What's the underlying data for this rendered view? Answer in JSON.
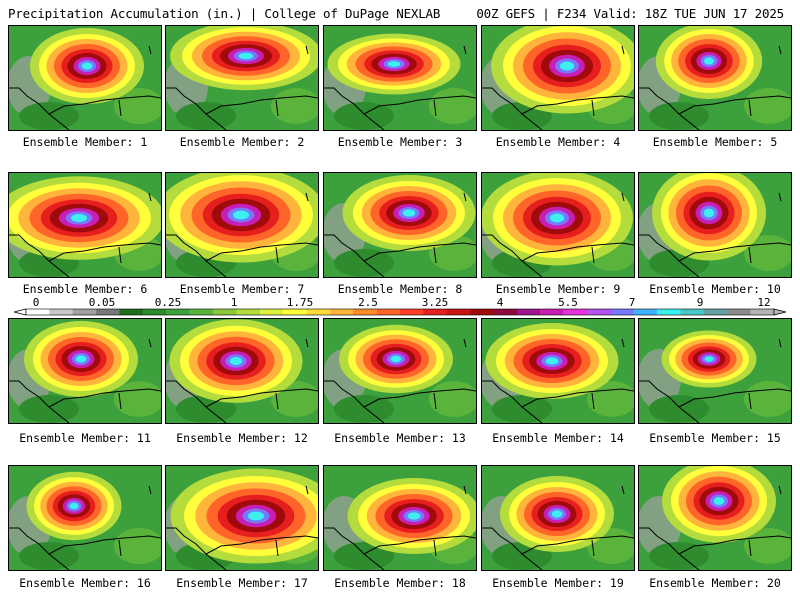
{
  "header": {
    "left": "Precipitation Accumulation (in.) | College of DuPage NEXLAB",
    "right": "00Z GEFS | F234 Valid: 18Z TUE JUN 17 2025"
  },
  "colorbar": {
    "labels": [
      "0",
      "0.05",
      "0.25",
      "1",
      "1.75",
      "2.5",
      "3.25",
      "4",
      "5.5",
      "7",
      "9",
      "12"
    ],
    "colors": [
      "#ffffff",
      "#c8c8c8",
      "#a0a0a0",
      "#787878",
      "#1e6e1e",
      "#2e8b2e",
      "#3ca03c",
      "#5ab43c",
      "#8cc83c",
      "#b4dc3c",
      "#dcf03c",
      "#ffff3c",
      "#ffdc3c",
      "#ffb43c",
      "#ff8c28",
      "#ff6428",
      "#ff3c28",
      "#e61e1e",
      "#c81414",
      "#a00a0a",
      "#8c0a3c",
      "#a0148c",
      "#c81eb4",
      "#e632dc",
      "#b450f0",
      "#7878ff",
      "#3cb4ff",
      "#3cf0f0",
      "#46c8c8",
      "#64a0a0",
      "#8c8c8c",
      "#b4b4b4"
    ]
  },
  "members": [
    {
      "label": "Ensemble Member: 1"
    },
    {
      "label": "Ensemble Member: 2"
    },
    {
      "label": "Ensemble Member: 3"
    },
    {
      "label": "Ensemble Member: 4"
    },
    {
      "label": "Ensemble Member: 5"
    },
    {
      "label": "Ensemble Member: 6"
    },
    {
      "label": "Ensemble Member: 7"
    },
    {
      "label": "Ensemble Member: 8"
    },
    {
      "label": "Ensemble Member: 9"
    },
    {
      "label": "Ensemble Member: 10"
    },
    {
      "label": "Ensemble Member: 11"
    },
    {
      "label": "Ensemble Member: 12"
    },
    {
      "label": "Ensemble Member: 13"
    },
    {
      "label": "Ensemble Member: 14"
    },
    {
      "label": "Ensemble Member: 15"
    },
    {
      "label": "Ensemble Member: 16"
    },
    {
      "label": "Ensemble Member: 17"
    },
    {
      "label": "Ensemble Member: 18"
    },
    {
      "label": "Ensemble Member: 19"
    },
    {
      "label": "Ensemble Member: 20"
    }
  ]
}
